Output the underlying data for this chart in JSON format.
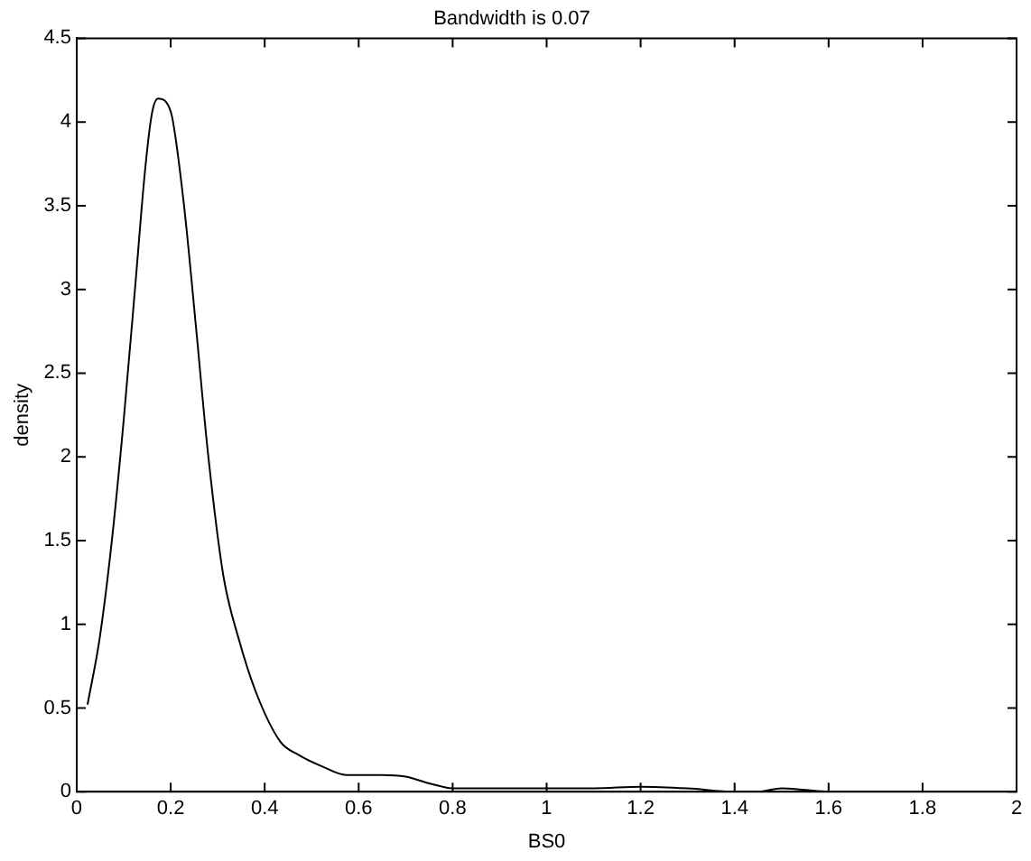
{
  "chart_data": {
    "type": "line",
    "title": "Bandwidth is 0.07",
    "xlabel": "BS0",
    "ylabel": "density",
    "xlim": [
      0,
      2
    ],
    "xticks": [
      0,
      0.2,
      0.4,
      0.6,
      0.8,
      1,
      1.2,
      1.4,
      1.6,
      1.8,
      2
    ],
    "ylim": [
      0,
      4.5
    ],
    "yticks": [
      0,
      0.5,
      1,
      1.5,
      2,
      2.5,
      3,
      3.5,
      4,
      4.5
    ],
    "grid": false,
    "legend": false,
    "marker": "none",
    "line_style": "solid",
    "series": [
      {
        "color": "#000000",
        "x": [
          0.023,
          0.049,
          0.074,
          0.1,
          0.126,
          0.145,
          0.16,
          0.173,
          0.19,
          0.203,
          0.228,
          0.254,
          0.279,
          0.312,
          0.344,
          0.382,
          0.433,
          0.472,
          0.523,
          0.574,
          0.65,
          0.7,
          0.75,
          0.8,
          0.9,
          1,
          1.1,
          1.2,
          1.3,
          1.4,
          1.45,
          1.5,
          1.55,
          1.6,
          1.7,
          1.8,
          1.9,
          2
        ],
        "values": [
          0.52,
          0.92,
          1.48,
          2.22,
          3.07,
          3.7,
          4.05,
          4.14,
          4.12,
          4.03,
          3.51,
          2.77,
          2.03,
          1.29,
          0.92,
          0.59,
          0.3,
          0.22,
          0.15,
          0.1,
          0.1,
          0.09,
          0.05,
          0.02,
          0.02,
          0.02,
          0.02,
          0.03,
          0.02,
          0,
          0,
          0.02,
          0.01,
          0,
          0,
          0,
          0,
          0
        ]
      }
    ]
  }
}
